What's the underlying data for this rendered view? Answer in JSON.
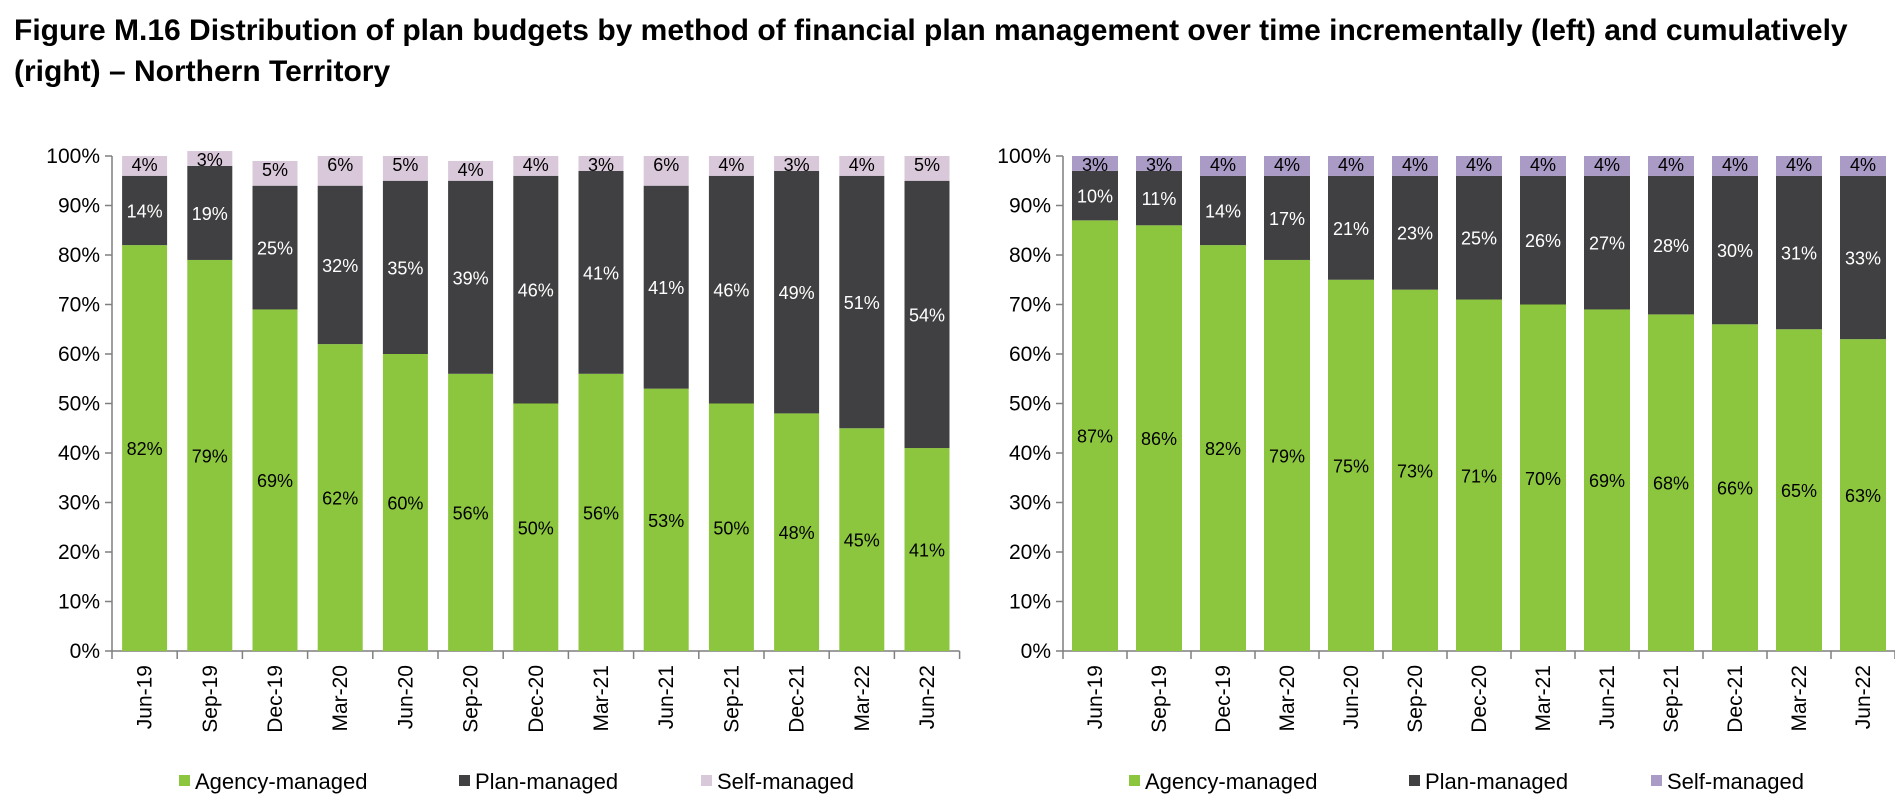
{
  "title": "Figure M.16 Distribution of plan budgets by method of financial plan management over time incrementally (left) and cumulatively (right) – Northern Territory",
  "colors": {
    "agency": "#8CC63F",
    "plan": "#404042",
    "self_left": "#D9C8DA",
    "self_right": "#A99BC6",
    "axis": "#7f7f7f"
  },
  "chart_data": [
    {
      "type": "bar",
      "stacked": true,
      "position": "left",
      "categories": [
        "Jun-19",
        "Sep-19",
        "Dec-19",
        "Mar-20",
        "Jun-20",
        "Sep-20",
        "Dec-20",
        "Mar-21",
        "Jun-21",
        "Sep-21",
        "Dec-21",
        "Mar-22",
        "Jun-22"
      ],
      "series": [
        {
          "name": "Agency-managed",
          "values": [
            82,
            79,
            69,
            62,
            60,
            56,
            50,
            56,
            53,
            50,
            48,
            45,
            41
          ],
          "labels": [
            "82%",
            "79%",
            "69%",
            "62%",
            "60%",
            "56%",
            "50%",
            "56%",
            "53%",
            "50%",
            "48%",
            "45%",
            "41%"
          ],
          "color": "#8CC63F"
        },
        {
          "name": "Plan-managed",
          "values": [
            14,
            19,
            25,
            32,
            35,
            39,
            46,
            41,
            41,
            46,
            49,
            51,
            54
          ],
          "labels": [
            "14%",
            "19%",
            "25%",
            "32%",
            "35%",
            "39%",
            "46%",
            "41%",
            "41%",
            "46%",
            "49%",
            "51%",
            "54%"
          ],
          "color": "#404042"
        },
        {
          "name": "Self-managed",
          "values": [
            4,
            3,
            5,
            6,
            5,
            4,
            4,
            3,
            6,
            4,
            3,
            4,
            5
          ],
          "labels": [
            "4%",
            "3%",
            "5%",
            "6%",
            "5%",
            "4%",
            "4%",
            "3%",
            "6%",
            "4%",
            "3%",
            "4%",
            "5%"
          ],
          "color": "#D9C8DA"
        }
      ],
      "yticks": [
        "0%",
        "10%",
        "20%",
        "30%",
        "40%",
        "50%",
        "60%",
        "70%",
        "80%",
        "90%",
        "100%"
      ],
      "ylim": [
        0,
        100
      ],
      "legend": "bottom"
    },
    {
      "type": "bar",
      "stacked": true,
      "position": "right",
      "categories": [
        "Jun-19",
        "Sep-19",
        "Dec-19",
        "Mar-20",
        "Jun-20",
        "Sep-20",
        "Dec-20",
        "Mar-21",
        "Jun-21",
        "Sep-21",
        "Dec-21",
        "Mar-22",
        "Jun-22"
      ],
      "series": [
        {
          "name": "Agency-managed",
          "values": [
            87,
            86,
            82,
            79,
            75,
            73,
            71,
            70,
            69,
            68,
            66,
            65,
            63
          ],
          "labels": [
            "87%",
            "86%",
            "82%",
            "79%",
            "75%",
            "73%",
            "71%",
            "70%",
            "69%",
            "68%",
            "66%",
            "65%",
            "63%"
          ],
          "color": "#8CC63F"
        },
        {
          "name": "Plan-managed",
          "values": [
            10,
            11,
            14,
            17,
            21,
            23,
            25,
            26,
            27,
            28,
            30,
            31,
            33
          ],
          "labels": [
            "10%",
            "11%",
            "14%",
            "17%",
            "21%",
            "23%",
            "25%",
            "26%",
            "27%",
            "28%",
            "30%",
            "31%",
            "33%"
          ],
          "color": "#404042"
        },
        {
          "name": "Self-managed",
          "values": [
            3,
            3,
            4,
            4,
            4,
            4,
            4,
            4,
            4,
            4,
            4,
            4,
            4
          ],
          "labels": [
            "3%",
            "3%",
            "4%",
            "4%",
            "4%",
            "4%",
            "4%",
            "4%",
            "4%",
            "4%",
            "4%",
            "4%",
            "4%"
          ],
          "color": "#A99BC6"
        }
      ],
      "yticks": [
        "0%",
        "10%",
        "20%",
        "30%",
        "40%",
        "50%",
        "60%",
        "70%",
        "80%",
        "90%",
        "100%"
      ],
      "ylim": [
        0,
        100
      ],
      "legend": "bottom"
    }
  ]
}
